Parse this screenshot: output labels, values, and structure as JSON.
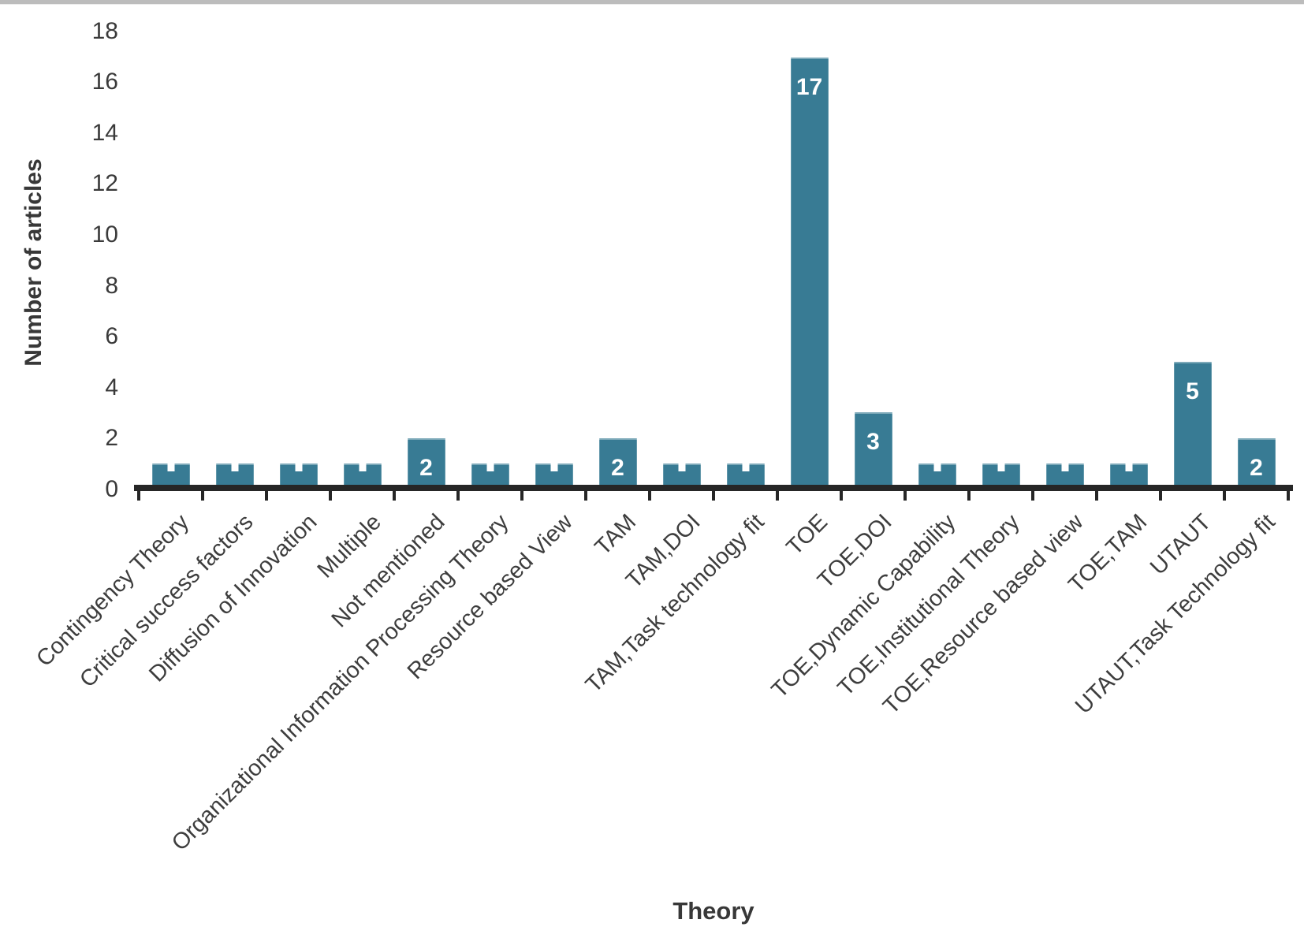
{
  "page": {
    "background_color": "#ffffff",
    "top_edge_color": "#bcbcbc"
  },
  "chart_data": {
    "type": "bar",
    "title": "",
    "xlabel": "Theory",
    "ylabel": "Number of articles",
    "categories": [
      "Contingency Theory",
      "Critical success factors",
      "Diffusion of Innovation",
      "Multiple",
      "Not mentioned",
      "Organizational Information Processing Theory",
      "Resource based View",
      "TAM",
      "TAM,DOI",
      "TAM,Task technology fit",
      "TOE",
      "TOE,DOI",
      "TOE,Dynamic Capability",
      "TOE,Institutional Theory",
      "TOE,Resource based view",
      "TOE,TAM",
      "UTAUT",
      "UTAUT,Task Technology fit"
    ],
    "values": [
      1,
      1,
      1,
      1,
      2,
      1,
      1,
      2,
      1,
      1,
      17,
      3,
      1,
      1,
      1,
      1,
      5,
      2
    ],
    "bar_labels_visible": [
      "2",
      "2",
      "17",
      "3",
      "5",
      "2"
    ],
    "ylim": [
      0,
      18
    ],
    "ytick_interval": 2,
    "ytick_labels": [
      "0",
      "2",
      "4",
      "6",
      "8",
      "10",
      "12",
      "14",
      "16",
      "18"
    ],
    "grid": false,
    "legend": null,
    "bar_color": "#387b94",
    "bar_label_color": "#ffffff",
    "axis_color": "#262626",
    "text_color": "#3d3d3d"
  }
}
